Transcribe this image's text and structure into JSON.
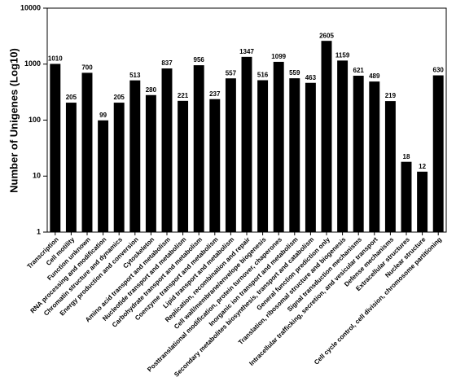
{
  "chart_data": {
    "type": "bar",
    "y_label": "Number of Unigenes (Log10)",
    "categories": [
      "Transcription",
      "Cell motility",
      "Function unknown",
      "RNA processing and modification",
      "Chromatin structure and dynamics",
      "Energy production and conversion",
      "Cytoskeleton",
      "Amino acid transport and metabolism",
      "Nucleotide transport and metabolism",
      "Carbohydrate transport and metabolism",
      "Coenzyme transport and metabolism",
      "Lipid transport and metabolism",
      "Replication, recombination and repair",
      "Cell wall/membrane/envelope biogenesis",
      "Posttranslational modification, protein turnover, chaperones",
      "Inorganic ion transport and metabolism",
      "Secondary metabolites biosynthesis, transport and catabolism",
      "General function prediction only",
      "Translation, ribosomal structure and biogenesis",
      "Signal transduction mechanisms",
      "Intracellular trafficking, secretion, and vesicular transport",
      "Defense mechanisms",
      "Extracellular structures",
      "Nuclear structure",
      "Cell cycle control, cell division, chromosome partitioning"
    ],
    "values": [
      1010,
      205,
      700,
      99,
      205,
      513,
      280,
      837,
      221,
      956,
      237,
      557,
      1347,
      516,
      1099,
      559,
      463,
      2605,
      1159,
      621,
      489,
      219,
      18,
      12,
      630
    ],
    "color": "#000000",
    "log_scale": true,
    "ylim": [
      1,
      10000
    ],
    "yticks": [
      1,
      10,
      100,
      1000,
      10000
    ],
    "grid": false
  }
}
